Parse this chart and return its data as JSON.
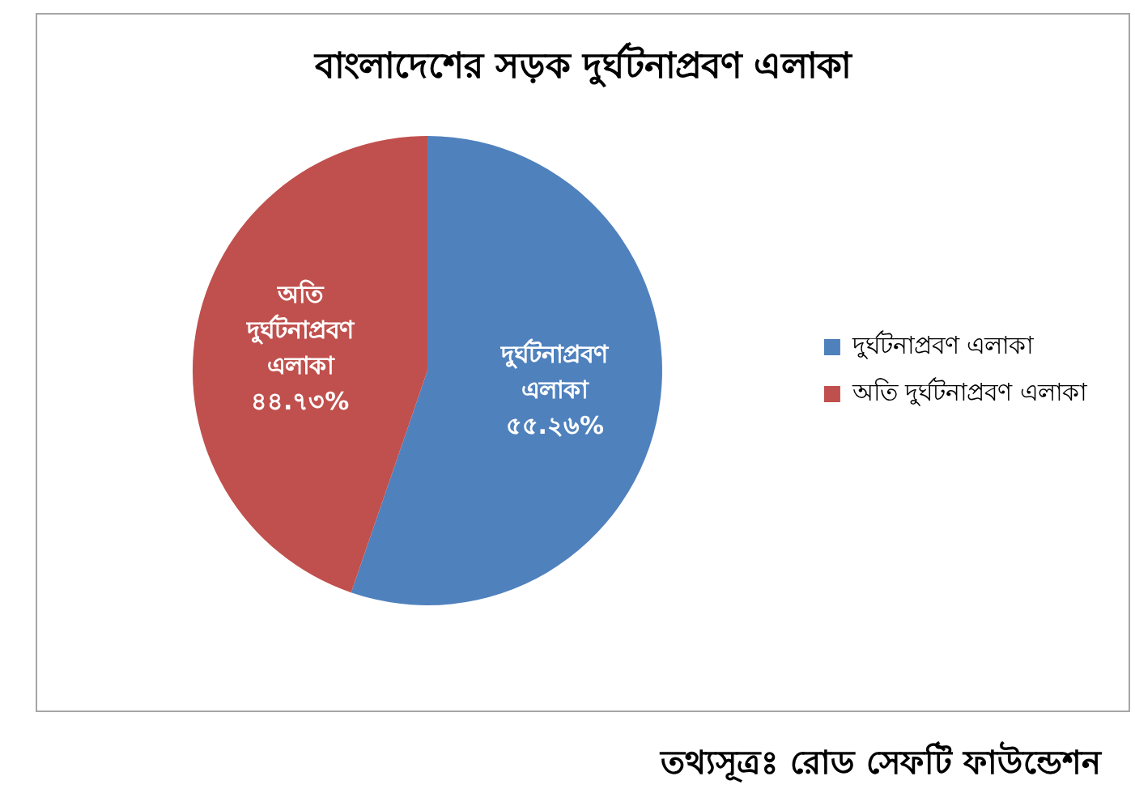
{
  "chart_data": {
    "type": "pie",
    "title": "বাংলাদেশের সড়ক দুর্ঘটনাপ্রবণ এলাকা",
    "categories": [
      "দুর্ঘটনাপ্রবণ এলাকা",
      "অতি দুর্ঘটনাপ্রবণ এলাকা"
    ],
    "values": [
      55.26,
      44.73
    ],
    "colors": [
      "#4f81bd",
      "#c0504d"
    ],
    "value_labels": [
      "৫৫.২৬%",
      "৪৪.৭৩%"
    ],
    "legend": "right",
    "annotations": [
      "তথ্যসূত্রঃ রোড সেফটি ফাউন্ডেশন"
    ]
  }
}
